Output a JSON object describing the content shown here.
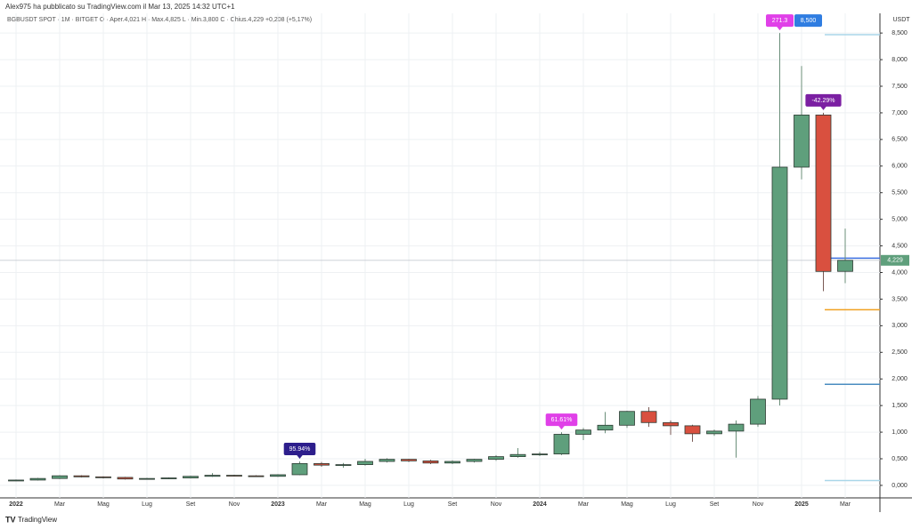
{
  "chart_data": {
    "type": "candlestick",
    "title": "Alex975 ha pubblicato su TradingView.com il Mar 13, 2025 14:32 UTC+1",
    "subtitle": "BGBUSDT SPOT · 1M · BITGET  O · Aper.4,021  H · Max.4,825  L · Min.3,800  C · Chius.4,229  +0,208 (+5,17%)",
    "y_axis_label": "USDT",
    "footer": "TradingView",
    "up_color": "#5f9f7c",
    "down_color": "#d9503f",
    "categories": [
      "2022",
      null,
      "Mar",
      null,
      "Mag",
      null,
      "Lug",
      null,
      "Set",
      null,
      "Nov",
      null,
      "2023",
      null,
      "Mar",
      null,
      "Mag",
      null,
      "Lug",
      null,
      "Set",
      null,
      "Nov",
      null,
      "2024",
      null,
      "Mar",
      null,
      "Mag",
      null,
      "Lug",
      null,
      "Set",
      null,
      "Nov",
      null,
      "2025",
      null,
      "Mar"
    ],
    "candles": [
      {
        "open": 0.09,
        "high": 0.11,
        "low": 0.08,
        "close": 0.1
      },
      {
        "open": 0.1,
        "high": 0.14,
        "low": 0.09,
        "close": 0.13
      },
      {
        "open": 0.13,
        "high": 0.19,
        "low": 0.12,
        "close": 0.18
      },
      {
        "open": 0.18,
        "high": 0.19,
        "low": 0.15,
        "close": 0.16
      },
      {
        "open": 0.16,
        "high": 0.17,
        "low": 0.13,
        "close": 0.15
      },
      {
        "open": 0.15,
        "high": 0.16,
        "low": 0.11,
        "close": 0.12
      },
      {
        "open": 0.12,
        "high": 0.14,
        "low": 0.11,
        "close": 0.13
      },
      {
        "open": 0.13,
        "high": 0.15,
        "low": 0.12,
        "close": 0.14
      },
      {
        "open": 0.14,
        "high": 0.18,
        "low": 0.13,
        "close": 0.17
      },
      {
        "open": 0.17,
        "high": 0.23,
        "low": 0.16,
        "close": 0.19
      },
      {
        "open": 0.19,
        "high": 0.2,
        "low": 0.17,
        "close": 0.18
      },
      {
        "open": 0.18,
        "high": 0.19,
        "low": 0.16,
        "close": 0.17
      },
      {
        "open": 0.17,
        "high": 0.21,
        "low": 0.16,
        "close": 0.2
      },
      {
        "open": 0.2,
        "high": 0.45,
        "low": 0.19,
        "close": 0.41,
        "label": "95.94%",
        "label_color": "#2d1e8c"
      },
      {
        "open": 0.41,
        "high": 0.44,
        "low": 0.35,
        "close": 0.38
      },
      {
        "open": 0.38,
        "high": 0.42,
        "low": 0.33,
        "close": 0.39
      },
      {
        "open": 0.39,
        "high": 0.5,
        "low": 0.37,
        "close": 0.45
      },
      {
        "open": 0.45,
        "high": 0.51,
        "low": 0.43,
        "close": 0.49
      },
      {
        "open": 0.49,
        "high": 0.5,
        "low": 0.44,
        "close": 0.46
      },
      {
        "open": 0.46,
        "high": 0.48,
        "low": 0.4,
        "close": 0.42
      },
      {
        "open": 0.42,
        "high": 0.47,
        "low": 0.4,
        "close": 0.45
      },
      {
        "open": 0.45,
        "high": 0.5,
        "low": 0.43,
        "close": 0.49
      },
      {
        "open": 0.49,
        "high": 0.57,
        "low": 0.46,
        "close": 0.54
      },
      {
        "open": 0.54,
        "high": 0.7,
        "low": 0.52,
        "close": 0.58
      },
      {
        "open": 0.58,
        "high": 0.63,
        "low": 0.55,
        "close": 0.59
      },
      {
        "open": 0.59,
        "high": 1.0,
        "low": 0.57,
        "close": 0.96,
        "label": "61.61%",
        "label_color": "#e040e8"
      },
      {
        "open": 0.96,
        "high": 1.08,
        "low": 0.85,
        "close": 1.04
      },
      {
        "open": 1.04,
        "high": 1.38,
        "low": 0.98,
        "close": 1.13
      },
      {
        "open": 1.13,
        "high": 1.4,
        "low": 1.08,
        "close": 1.39
      },
      {
        "open": 1.39,
        "high": 1.47,
        "low": 1.1,
        "close": 1.18
      },
      {
        "open": 1.18,
        "high": 1.22,
        "low": 0.95,
        "close": 1.12
      },
      {
        "open": 1.12,
        "high": 1.14,
        "low": 0.82,
        "close": 0.97
      },
      {
        "open": 0.97,
        "high": 1.05,
        "low": 0.93,
        "close": 1.02
      },
      {
        "open": 1.02,
        "high": 1.22,
        "low": 0.52,
        "close": 1.15
      },
      {
        "open": 1.15,
        "high": 1.68,
        "low": 1.1,
        "close": 1.62
      },
      {
        "open": 1.62,
        "high": 8.5,
        "low": 1.5,
        "close": 5.98,
        "label": "271.3",
        "label_color": "#e040e8",
        "high_label": "8,500",
        "high_label_color": "#2f7de1"
      },
      {
        "open": 5.98,
        "high": 7.88,
        "low": 5.75,
        "close": 6.96
      },
      {
        "open": 6.96,
        "high": 7.0,
        "low": 3.65,
        "close": 4.02,
        "label": "-42.29%",
        "label_color": "#7b1fa2"
      },
      {
        "open": 4.021,
        "high": 4.825,
        "low": 3.8,
        "close": 4.229
      }
    ],
    "last_price": {
      "value": 4.229,
      "label": "4,229"
    },
    "levels": [
      {
        "value": 8.47,
        "color": "#a9d6e8"
      },
      {
        "value": 4.27,
        "color": "#3b6fe0"
      },
      {
        "value": 3.3,
        "color": "#f0a020"
      },
      {
        "value": 1.9,
        "color": "#4a8cc0"
      },
      {
        "value": 0.09,
        "color": "#a9d6e8"
      }
    ],
    "ylim": [
      -0.235,
      8.87
    ],
    "yticks": [
      {
        "value": 0,
        "label": "0,000"
      },
      {
        "value": 0.5,
        "label": "0,500"
      },
      {
        "value": 1,
        "label": "1,000"
      },
      {
        "value": 1.5,
        "label": "1,500"
      },
      {
        "value": 2,
        "label": "2,000"
      },
      {
        "value": 2.5,
        "label": "2,500"
      },
      {
        "value": 3,
        "label": "3,000"
      },
      {
        "value": 3.5,
        "label": "3,500"
      },
      {
        "value": 4,
        "label": "4,000"
      },
      {
        "value": 4.5,
        "label": "4,500"
      },
      {
        "value": 5,
        "label": "5,000"
      },
      {
        "value": 5.5,
        "label": "5,500"
      },
      {
        "value": 6,
        "label": "6,000"
      },
      {
        "value": 6.5,
        "label": "6,500"
      },
      {
        "value": 7,
        "label": "7,000"
      },
      {
        "value": 7.5,
        "label": "7,500"
      },
      {
        "value": 8,
        "label": "8,000"
      },
      {
        "value": 8.5,
        "label": "8,500"
      }
    ],
    "grid": true
  }
}
